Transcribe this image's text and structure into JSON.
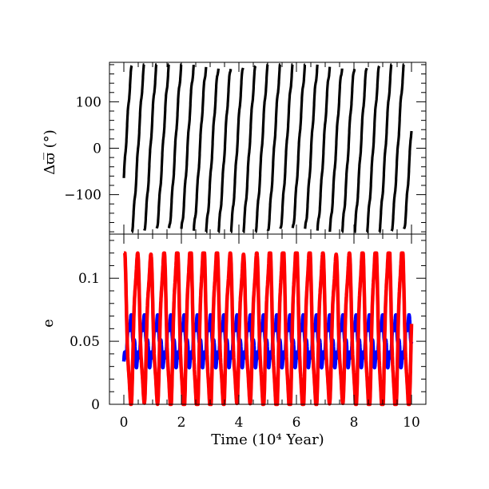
{
  "chart_data": [
    {
      "type": "scatter",
      "panel": "top",
      "ylabel": "Δϖ̅ (°)",
      "xlim": [
        -0.5,
        10.5
      ],
      "ylim": [
        -185,
        185
      ],
      "yticks": [
        -100,
        0,
        100
      ],
      "ytick_labels": [
        "−100",
        "0",
        "100"
      ],
      "series": [
        {
          "color": "#000000",
          "description_kind": "circulating angle, wraps from -180 to 180",
          "wrap_period_kyr": 4.3,
          "phase_kyr": 1.5,
          "x_range": [
            0,
            10
          ]
        }
      ]
    },
    {
      "type": "line",
      "panel": "bottom",
      "xlabel": "Time (10⁴ Year)",
      "ylabel": "e",
      "xlim": [
        -0.5,
        10.5
      ],
      "ylim": [
        0,
        0.135
      ],
      "xticks": [
        0,
        2,
        4,
        6,
        8,
        10
      ],
      "xtick_labels": [
        "0",
        "2",
        "4",
        "6",
        "8",
        "10"
      ],
      "yticks": [
        0,
        0.05,
        0.1
      ],
      "ytick_labels": [
        "0",
        "0.05",
        "0.1"
      ],
      "series": [
        {
          "color": "#0000ff",
          "x_range": [
            0,
            10
          ],
          "min": 0.03,
          "max": 0.07,
          "period_kyr": 4.6
        },
        {
          "color": "#ff0000",
          "x_range": [
            0,
            10
          ],
          "min": 0.0,
          "max": 0.12,
          "period_kyr": 4.6
        }
      ]
    }
  ]
}
